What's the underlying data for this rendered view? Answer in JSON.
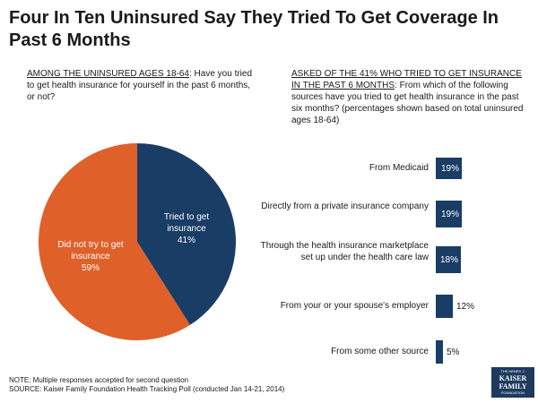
{
  "title": "Four In Ten Uninsured Say They Tried To Get Coverage In Past 6 Months",
  "left_question": {
    "underlined": "AMONG THE UNINSURED AGES 18-64",
    "rest": ": Have you tried to get health insurance for yourself in the past 6 months, or not?"
  },
  "right_question": {
    "underlined": "ASKED OF THE 41% WHO TRIED TO GET INSURANCE IN THE PAST 6 MONTHS",
    "rest": ": From which of the following sources have you tried to get health insurance in the past six months? (percentages shown based on total uninsured ages 18-64)"
  },
  "chart_data": [
    {
      "type": "pie",
      "slices": [
        {
          "label": "Tried to get insurance",
          "value": 41,
          "value_label": "41%",
          "color": "#1a3d66"
        },
        {
          "label": "Did not try to get insurance",
          "value": 59,
          "value_label": "59%",
          "color": "#e0602a"
        }
      ]
    },
    {
      "type": "bar",
      "orientation": "horizontal",
      "categories": [
        "From Medicaid",
        "Directly from a private insurance company",
        "Through the health insurance marketplace set up under the health care law",
        "From your or your spouse's employer",
        "From some other source"
      ],
      "values": [
        19,
        19,
        18,
        12,
        5
      ],
      "value_labels": [
        "19%",
        "19%",
        "18%",
        "12%",
        "5%"
      ],
      "color": "#1a3d66"
    }
  ],
  "footer": {
    "note": "NOTE: Multiple responses accepted for second question",
    "source": "SOURCE: Kaiser Family Foundation Health Tracking Poll (conducted Jan 14-21, 2014)"
  },
  "logo": {
    "line1": "THE HENRY J.",
    "line2": "KAISER",
    "line3": "FAMILY",
    "line4": "FOUNDATION"
  }
}
